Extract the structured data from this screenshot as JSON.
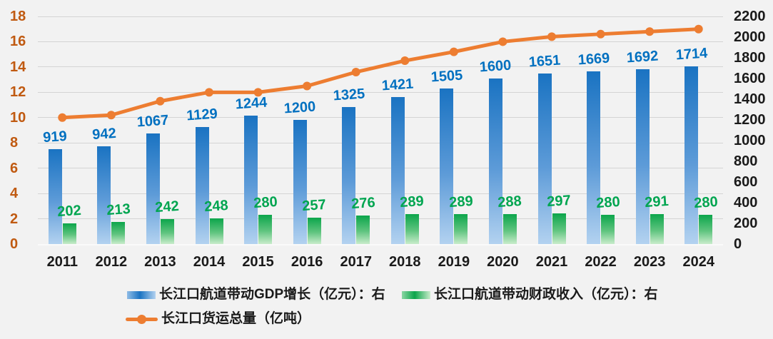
{
  "chart_data": {
    "type": "combo-bar-line",
    "title": "",
    "categories": [
      "2011",
      "2012",
      "2013",
      "2014",
      "2015",
      "2016",
      "2017",
      "2018",
      "2019",
      "2020",
      "2021",
      "2022",
      "2023",
      "2024"
    ],
    "series": [
      {
        "name": "长江口航道带动GDP增长（亿元）：右",
        "type": "bar",
        "axis": "right",
        "values": [
          919,
          942,
          1067,
          1129,
          1244,
          1200,
          1325,
          1421,
          1505,
          1600,
          1651,
          1669,
          1692,
          1714
        ],
        "label_color": "#0070C0"
      },
      {
        "name": "长江口航道带动财政收入（亿元）：右",
        "type": "bar",
        "axis": "right",
        "values": [
          202,
          213,
          242,
          248,
          280,
          257,
          276,
          289,
          289,
          288,
          297,
          280,
          291,
          280
        ],
        "label_color": "#00A550"
      },
      {
        "name": "长江口货运总量（亿吨）",
        "type": "line",
        "axis": "left",
        "values": [
          10.0,
          10.2,
          11.3,
          12.0,
          12.0,
          12.5,
          13.6,
          14.5,
          15.2,
          16.0,
          16.4,
          16.6,
          16.8,
          17.0
        ],
        "line_color": "#ED7D31"
      }
    ],
    "left_axis": {
      "min": 0,
      "max": 18,
      "step": 2,
      "ticks": [
        "0",
        "2",
        "4",
        "6",
        "8",
        "10",
        "12",
        "14",
        "16",
        "18"
      ],
      "color": "#C05A11"
    },
    "right_axis": {
      "min": 0,
      "max": 2200,
      "step": 200,
      "ticks": [
        "0",
        "200",
        "400",
        "600",
        "800",
        "1000",
        "1200",
        "1400",
        "1600",
        "1800",
        "2000",
        "2200"
      ],
      "color": "#1A1A1A"
    },
    "grid": true,
    "legend_position": "bottom-left"
  },
  "colors": {
    "background": "#F2F2F2",
    "gridline": "#D4D4D4",
    "bar_gdp_top": "#1A73C2",
    "bar_gdp_bottom": "#B3D2F0",
    "bar_rev_top": "#0CA54B",
    "bar_rev_bottom": "#C9ECCB",
    "line": "#ED7D31"
  }
}
